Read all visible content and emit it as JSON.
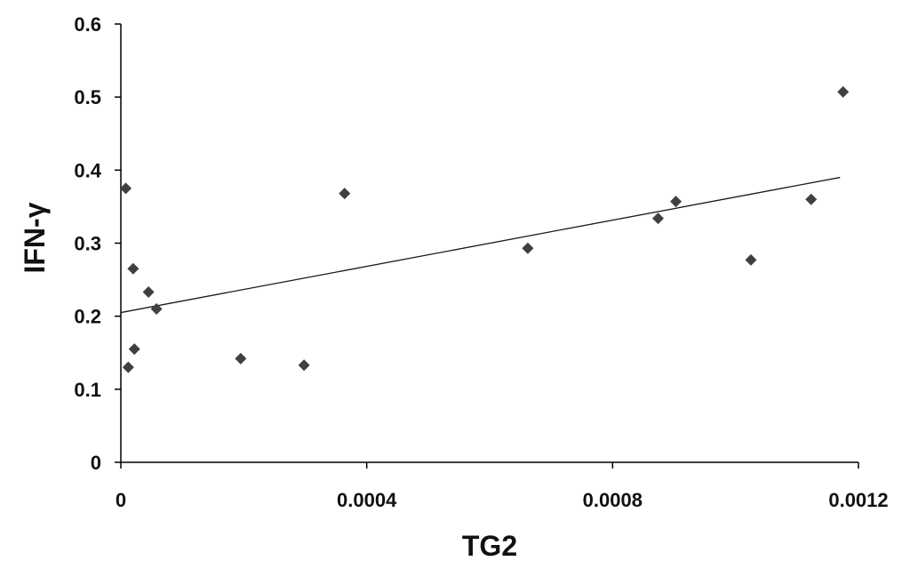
{
  "chart_data": {
    "type": "scatter",
    "title": "",
    "xlabel": "TG2",
    "ylabel": "IFN-γ",
    "xlim": [
      0,
      0.0012
    ],
    "ylim": [
      0,
      0.6
    ],
    "x_ticks": [
      0,
      0.0004,
      0.0008,
      0.0012
    ],
    "x_tick_labels": [
      "0",
      "0.0004",
      "0.0008",
      "0.0012"
    ],
    "y_ticks": [
      0,
      0.1,
      0.2,
      0.3,
      0.4,
      0.5,
      0.6
    ],
    "y_tick_labels": [
      "0",
      "0.1",
      "0.2",
      "0.3",
      "0.4",
      "0.5",
      "0.6"
    ],
    "grid": false,
    "legend": "none",
    "marker": "diamond",
    "colors": {
      "points": "#404040",
      "trendline": "#1a1a1a",
      "axis": "#000000"
    },
    "series": [
      {
        "points": [
          {
            "x": 8e-06,
            "y": 0.375
          },
          {
            "x": 2e-05,
            "y": 0.265
          },
          {
            "x": 4.5e-05,
            "y": 0.233
          },
          {
            "x": 5.8e-05,
            "y": 0.21
          },
          {
            "x": 2.2e-05,
            "y": 0.155
          },
          {
            "x": 1.2e-05,
            "y": 0.13
          },
          {
            "x": 0.000195,
            "y": 0.142
          },
          {
            "x": 0.000298,
            "y": 0.133
          },
          {
            "x": 0.000364,
            "y": 0.368
          },
          {
            "x": 0.000662,
            "y": 0.293
          },
          {
            "x": 0.000874,
            "y": 0.334
          },
          {
            "x": 0.000903,
            "y": 0.357
          },
          {
            "x": 0.001025,
            "y": 0.277
          },
          {
            "x": 0.001123,
            "y": 0.36
          },
          {
            "x": 0.001175,
            "y": 0.507
          }
        ]
      }
    ],
    "trendline": {
      "type": "linear",
      "x": [
        0,
        0.00117
      ],
      "y": [
        0.205,
        0.39
      ]
    }
  }
}
